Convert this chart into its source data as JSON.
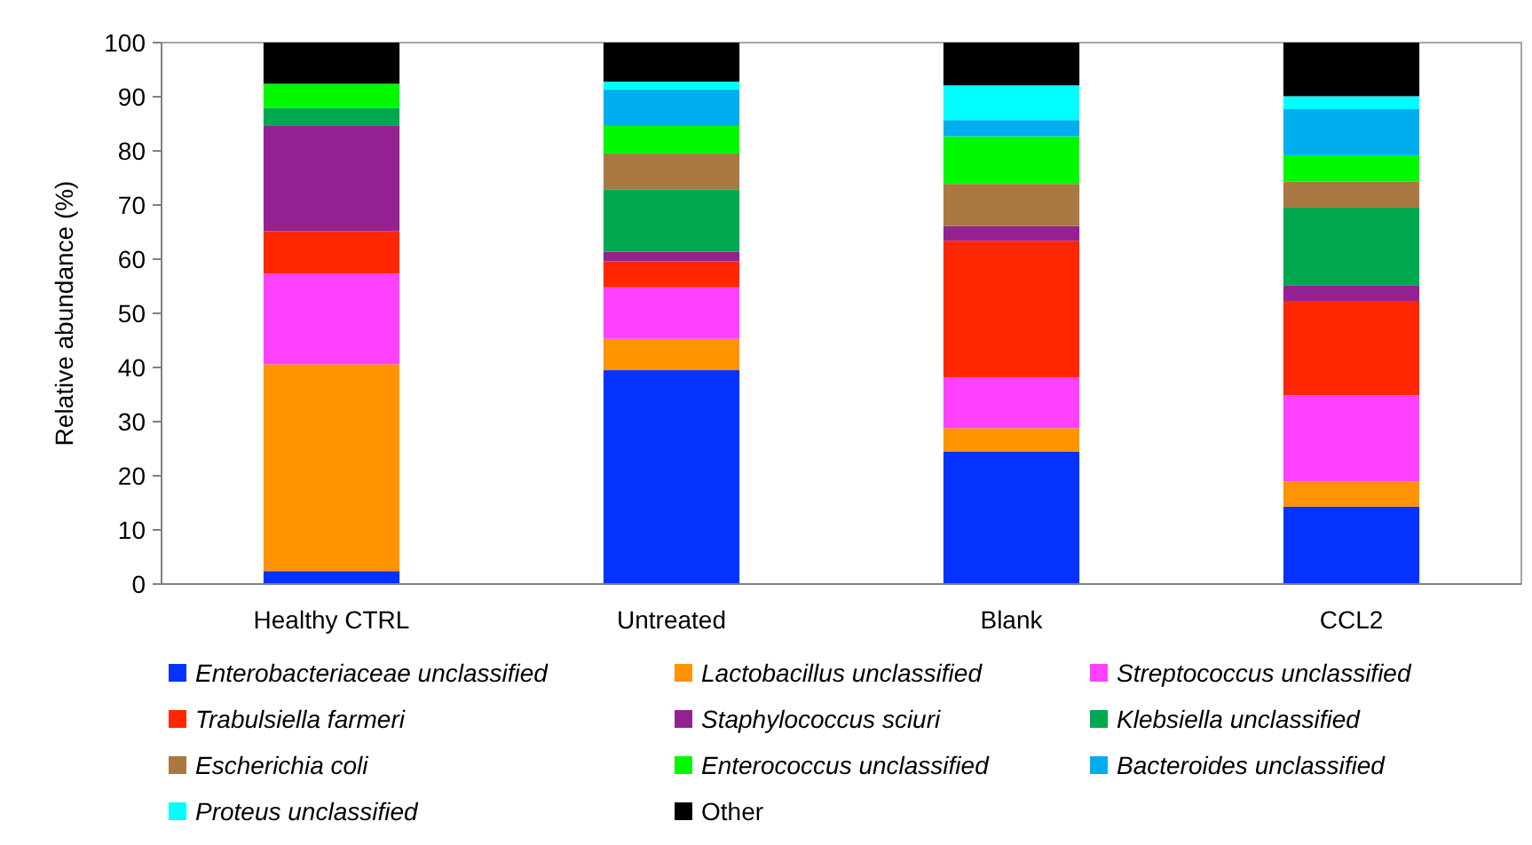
{
  "chart_data": {
    "type": "bar",
    "stacked": true,
    "ylabel": "Relative abundance (%)",
    "categories": [
      "Healthy CTRL",
      "Untreated",
      "Blank",
      "CCL2"
    ],
    "ylim": [
      0,
      100
    ],
    "yticks": [
      0,
      10,
      20,
      30,
      40,
      50,
      60,
      70,
      80,
      90,
      100
    ],
    "grid": false,
    "legend": "bottom",
    "series": [
      {
        "name": "Enterobacteriaceae unclassified",
        "color": "#0433ff",
        "values": [
          2.4,
          39.5,
          24.5,
          14.3
        ]
      },
      {
        "name": "Lactobacillus unclassified",
        "color": "#ff9300",
        "values": [
          38.2,
          5.8,
          4.3,
          4.7
        ]
      },
      {
        "name": "Streptococcus unclassified",
        "color": "#ff40ff",
        "values": [
          16.7,
          9.5,
          9.4,
          15.9
        ]
      },
      {
        "name": "Trabulsiella farmeri",
        "color": "#ff2600",
        "values": [
          7.9,
          4.8,
          25.2,
          17.4
        ]
      },
      {
        "name": "Staphylococcus sciuri",
        "color": "#942192",
        "values": [
          19.4,
          1.8,
          2.7,
          2.9
        ]
      },
      {
        "name": "Klebsiella unclassified",
        "color": "#00a84f",
        "values": [
          3.3,
          11.5,
          0,
          14.3
        ]
      },
      {
        "name": "Escherichia coli",
        "color": "#aa7942",
        "values": [
          0,
          6.6,
          7.8,
          4.8
        ]
      },
      {
        "name": "Enterococcus unclassified",
        "color": "#00f900",
        "values": [
          4.5,
          5.1,
          8.8,
          4.9
        ]
      },
      {
        "name": "Bacteroides unclassified",
        "color": "#00aeef",
        "values": [
          0,
          6.7,
          3.0,
          8.5
        ]
      },
      {
        "name": "Proteus unclassified",
        "color": "#00fdff",
        "values": [
          0,
          1.5,
          6.4,
          2.4
        ]
      },
      {
        "name": "Other",
        "color": "#000000",
        "values": [
          7.6,
          7.2,
          7.9,
          9.9
        ]
      }
    ]
  }
}
